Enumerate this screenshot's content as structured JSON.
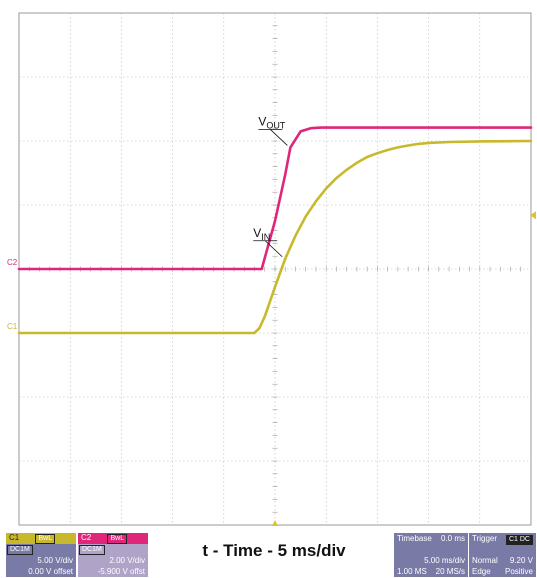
{
  "chart_data": {
    "type": "line",
    "title": "",
    "xlabel": "t - Time - 5 ms/div",
    "ylabel": "",
    "grid": true,
    "divisions": {
      "x": 10,
      "y": 8
    },
    "xlim": [
      -25,
      25
    ],
    "x_unit": "ms",
    "series": [
      {
        "name": "VIN",
        "label_main": "V",
        "label_sub": "IN",
        "channel": "C1",
        "color": "#c8b92c",
        "volts_per_div": 5.0,
        "offset_v": 0.0,
        "baseline_div": -1.0,
        "points": [
          [
            -25,
            0.0
          ],
          [
            -2,
            0.0
          ],
          [
            -1.5,
            0.4
          ],
          [
            -1,
            1.3
          ],
          [
            0,
            3.6
          ],
          [
            1,
            5.8
          ],
          [
            2,
            7.6
          ],
          [
            3,
            9.1
          ],
          [
            4,
            10.3
          ],
          [
            5,
            11.3
          ],
          [
            6,
            12.1
          ],
          [
            7,
            12.75
          ],
          [
            8,
            13.3
          ],
          [
            9,
            13.75
          ],
          [
            10,
            14.05
          ],
          [
            11,
            14.3
          ],
          [
            12,
            14.5
          ],
          [
            13,
            14.65
          ],
          [
            14,
            14.77
          ],
          [
            15,
            14.85
          ],
          [
            17,
            14.92
          ],
          [
            20,
            14.97
          ],
          [
            25,
            15.0
          ]
        ],
        "annotation_point": [
          1.0,
          5.8
        ]
      },
      {
        "name": "VOUT",
        "label_main": "V",
        "label_sub": "OUT",
        "channel": "C2",
        "color": "#e0267a",
        "volts_per_div": 2.0,
        "offset_v": -5.9,
        "baseline_div": 0.0,
        "points": [
          [
            -25,
            0.0
          ],
          [
            -1.3,
            0.0
          ],
          [
            0,
            1.5
          ],
          [
            1,
            2.95
          ],
          [
            1.5,
            3.8
          ],
          [
            2.5,
            4.3
          ],
          [
            3.5,
            4.4
          ],
          [
            4.5,
            4.42
          ],
          [
            25,
            4.42
          ]
        ],
        "annotation_point": [
          1.5,
          3.8
        ]
      }
    ],
    "ch1": {
      "label": "C1",
      "badge1": "BwL",
      "badge2": "DC1M",
      "scale": "5.00 V/div",
      "offset": "0.00 V offset"
    },
    "ch2": {
      "label": "C2",
      "badge1": "BwL",
      "badge2": "DC1M",
      "scale": "2.00 V/div",
      "offset": "-5.900 V offst"
    },
    "timebase": {
      "label": "Timebase",
      "delay": "0.0 ms",
      "scale": "5.00 ms/div",
      "samples": "1.00 MS",
      "rate": "20 MS/s"
    },
    "trigger": {
      "label": "Trigger",
      "badge": "C1 DC",
      "mode": "Normal",
      "level": "9.20 V",
      "type": "Edge",
      "slope": "Positive"
    },
    "colors": {
      "ch1": "#c8b92c",
      "ch2": "#e0267a",
      "panel": "#7a7aa6",
      "panel_ch2": "#b0a3c8",
      "grid": "#b8b8b8",
      "marker": "#e0c22a"
    }
  }
}
